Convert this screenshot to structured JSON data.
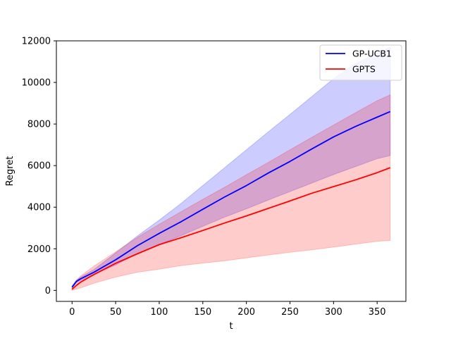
{
  "chart_data": {
    "type": "line",
    "xlabel": "t",
    "ylabel": "Regret",
    "xlim": [
      -18,
      383
    ],
    "ylim": [
      -530,
      12000
    ],
    "x_ticks": [
      0,
      50,
      100,
      150,
      200,
      250,
      300,
      350
    ],
    "y_ticks": [
      0,
      2000,
      4000,
      6000,
      8000,
      10000,
      12000
    ],
    "legend_position": "top-right",
    "grid": false,
    "series": [
      {
        "name": "GP-UCB1",
        "color": "#0000ff",
        "fill_color": "#0000ff",
        "fill_opacity": 0.2,
        "x": [
          0,
          5,
          10,
          25,
          50,
          75,
          100,
          125,
          150,
          175,
          200,
          225,
          250,
          275,
          300,
          325,
          350,
          365
        ],
        "mean": [
          150,
          430,
          560,
          870,
          1470,
          2150,
          2740,
          3300,
          3900,
          4490,
          5040,
          5640,
          6200,
          6800,
          7380,
          7880,
          8330,
          8600
        ],
        "lower": [
          100,
          380,
          480,
          760,
          1220,
          1770,
          2200,
          2630,
          3080,
          3520,
          3920,
          4340,
          4750,
          5160,
          5570,
          5950,
          6330,
          6480
        ],
        "upper": [
          220,
          500,
          640,
          1000,
          1800,
          2620,
          3380,
          4180,
          5040,
          5900,
          6760,
          7620,
          8460,
          9320,
          10180,
          10900,
          11400,
          11700
        ]
      },
      {
        "name": "GPTS",
        "color": "#ff0000",
        "fill_color": "#ff0000",
        "fill_opacity": 0.2,
        "x": [
          0,
          5,
          10,
          25,
          50,
          75,
          100,
          125,
          150,
          175,
          200,
          225,
          250,
          275,
          300,
          325,
          350,
          365
        ],
        "mean": [
          50,
          240,
          400,
          760,
          1300,
          1760,
          2200,
          2530,
          2880,
          3240,
          3580,
          3940,
          4300,
          4670,
          4990,
          5310,
          5660,
          5900
        ],
        "lower": [
          0,
          60,
          120,
          340,
          640,
          870,
          1020,
          1190,
          1310,
          1420,
          1560,
          1700,
          1830,
          1950,
          2080,
          2220,
          2360,
          2400
        ],
        "upper": [
          120,
          480,
          700,
          1160,
          1850,
          2550,
          3180,
          3780,
          4380,
          4960,
          5560,
          6150,
          6760,
          7360,
          7950,
          8540,
          9120,
          9400
        ]
      }
    ]
  }
}
